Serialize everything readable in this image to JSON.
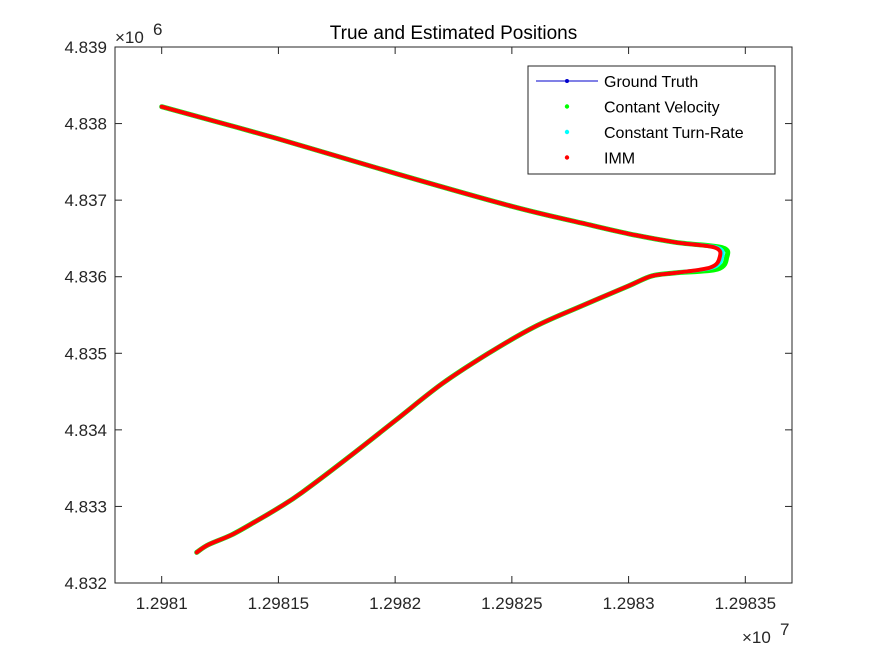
{
  "chart_data": {
    "type": "line",
    "title": "True and Estimated Positions",
    "xlabel": "",
    "ylabel": "",
    "x_multiplier": "×10",
    "x_multiplier_exp": "7",
    "y_multiplier": "×10",
    "y_multiplier_exp": "6",
    "xlim": [
      12980.8,
      12983.7
    ],
    "ylim": [
      4832.0,
      4839.0
    ],
    "x_ticks": [
      12981.0,
      12981.5,
      12982.0,
      12982.5,
      12983.0,
      12983.5
    ],
    "x_tick_labels": [
      "1.2981",
      "1.29815",
      "1.2982",
      "1.29825",
      "1.2983",
      "1.29835"
    ],
    "y_ticks": [
      4832,
      4833,
      4834,
      4835,
      4836,
      4837,
      4838,
      4839
    ],
    "y_tick_labels": [
      "4.832",
      "4.833",
      "4.834",
      "4.835",
      "4.836",
      "4.837",
      "4.838",
      "4.839"
    ],
    "grid": false,
    "legend_position": "top-right",
    "series": [
      {
        "name": "Ground Truth",
        "style": "line-dot",
        "color": "#0000cc",
        "x": [
          12981.0,
          12981.5,
          12982.0,
          12982.5,
          12982.8,
          12983.0,
          12983.2,
          12983.38,
          12983.4,
          12983.36,
          12983.2,
          12983.1,
          12983.0,
          12982.8,
          12982.6,
          12982.4,
          12982.2,
          12982.0,
          12981.8,
          12981.6,
          12981.5,
          12981.4,
          12981.3,
          12981.2,
          12981.15
        ],
        "y": [
          4838.22,
          4837.8,
          4837.35,
          4836.92,
          4836.7,
          4836.56,
          4836.45,
          4836.38,
          4836.25,
          4836.12,
          4836.05,
          4836.01,
          4835.88,
          4835.62,
          4835.35,
          4835.0,
          4834.6,
          4834.12,
          4833.64,
          4833.18,
          4832.98,
          4832.8,
          4832.63,
          4832.5,
          4832.4
        ]
      },
      {
        "name": "Contant Velocity",
        "style": "dots",
        "color": "#00ff00",
        "x": [
          12981.0,
          12981.5,
          12982.0,
          12982.5,
          12982.8,
          12983.0,
          12983.2,
          12983.4,
          12983.42,
          12983.38,
          12983.2,
          12983.1,
          12983.0,
          12982.8,
          12982.6,
          12982.4,
          12982.2,
          12982.0,
          12981.8,
          12981.6,
          12981.5,
          12981.4,
          12981.3,
          12981.2,
          12981.15
        ],
        "y": [
          4838.22,
          4837.8,
          4837.35,
          4836.92,
          4836.7,
          4836.56,
          4836.45,
          4836.38,
          4836.25,
          4836.1,
          4836.05,
          4836.01,
          4835.88,
          4835.62,
          4835.35,
          4835.0,
          4834.6,
          4834.12,
          4833.64,
          4833.18,
          4832.98,
          4832.8,
          4832.63,
          4832.5,
          4832.4
        ]
      },
      {
        "name": "Constant Turn-Rate",
        "style": "dots",
        "color": "#00ffff",
        "x": [
          12981.0,
          12981.5,
          12982.0,
          12982.5,
          12982.8,
          12983.0,
          12983.2,
          12983.38,
          12983.4,
          12983.36,
          12983.2,
          12983.1,
          12983.0,
          12982.8,
          12982.6,
          12982.4,
          12982.2,
          12982.0,
          12981.8,
          12981.6,
          12981.5,
          12981.4,
          12981.3,
          12981.2,
          12981.15
        ],
        "y": [
          4838.22,
          4837.8,
          4837.35,
          4836.92,
          4836.7,
          4836.56,
          4836.45,
          4836.38,
          4836.25,
          4836.12,
          4836.05,
          4836.01,
          4835.88,
          4835.62,
          4835.35,
          4835.0,
          4834.6,
          4834.12,
          4833.64,
          4833.18,
          4832.98,
          4832.8,
          4832.63,
          4832.5,
          4832.4
        ]
      },
      {
        "name": "IMM",
        "style": "dots",
        "color": "#ff0000",
        "x": [
          12981.0,
          12981.5,
          12982.0,
          12982.5,
          12982.8,
          12983.0,
          12983.2,
          12983.37,
          12983.39,
          12983.35,
          12983.2,
          12983.1,
          12983.0,
          12982.8,
          12982.6,
          12982.4,
          12982.2,
          12982.0,
          12981.8,
          12981.6,
          12981.5,
          12981.4,
          12981.3,
          12981.2,
          12981.15
        ],
        "y": [
          4838.22,
          4837.8,
          4837.35,
          4836.92,
          4836.7,
          4836.56,
          4836.45,
          4836.38,
          4836.25,
          4836.12,
          4836.05,
          4836.01,
          4835.88,
          4835.62,
          4835.35,
          4835.0,
          4834.6,
          4834.12,
          4833.64,
          4833.18,
          4832.98,
          4832.8,
          4832.63,
          4832.5,
          4832.4
        ]
      }
    ]
  }
}
